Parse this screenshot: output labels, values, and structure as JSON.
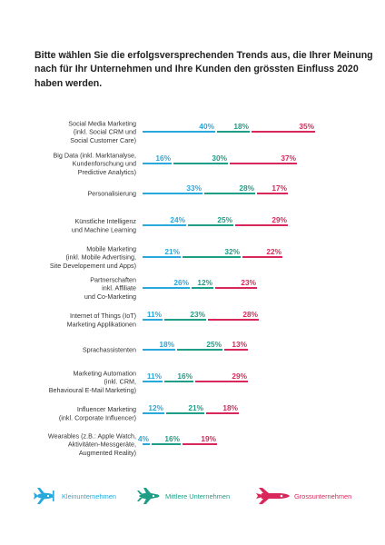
{
  "title": {
    "lines": [
      "Bitte wählen Sie die erfolgsversprechenden Trends aus, die Ihrer Meinung",
      "nach für Ihr Unternehmen und Ihre Kunden den grössten Einfluss 2020",
      "haben werden."
    ]
  },
  "colors": {
    "kleinunternehmen": "#29a8dc",
    "mittlere_unternehmen": "#1e9e87",
    "grossunternehmen": "#d8285b",
    "label_text": "#333333"
  },
  "legend": [
    {
      "key": "kleinunternehmen",
      "label": "Kleinunternehmen",
      "icon": "propeller-plane-icon"
    },
    {
      "key": "mittlere_unternehmen",
      "label": "Mittlere Unternehmen",
      "icon": "jet-plane-icon"
    },
    {
      "key": "grossunternehmen",
      "label": "Grossunternehmen",
      "icon": "rocket-icon"
    }
  ],
  "chart_data": {
    "type": "bar",
    "stacked": true,
    "orientation": "horizontal",
    "value_unit": "%",
    "legend_position": "bottom",
    "grid": false,
    "series": [
      {
        "name": "Kleinunternehmen",
        "values": [
          40,
          16,
          33,
          24,
          21,
          26,
          11,
          18,
          11,
          12,
          4
        ]
      },
      {
        "name": "Mittlere Unternehmen",
        "values": [
          18,
          30,
          28,
          25,
          32,
          12,
          23,
          25,
          16,
          21,
          16
        ]
      },
      {
        "name": "Grossunternehmen",
        "values": [
          35,
          37,
          17,
          29,
          22,
          23,
          28,
          13,
          29,
          18,
          19
        ]
      }
    ],
    "categories": [
      {
        "lines": [
          "Social Media Marketing",
          "(inkl. Social CRM und",
          "Social Customer Care)"
        ]
      },
      {
        "lines": [
          "Big Data (inkl. Marktanalyse,",
          "Kundenforschung und",
          "Predictive Analytics)"
        ]
      },
      {
        "lines": [
          "Personalisierung"
        ]
      },
      {
        "lines": [
          "Künstliche Intelligenz",
          "und Machine Learning"
        ]
      },
      {
        "lines": [
          "Mobile Marketing",
          "(inkl. Mobile Advertising,",
          "Site Developement und Apps)"
        ]
      },
      {
        "lines": [
          "Partnerschaften",
          "inkl. Affiliate",
          "und Co-Marketing"
        ]
      },
      {
        "lines": [
          "Internet of Things (IoT)",
          "Marketing Applikationen"
        ]
      },
      {
        "lines": [
          "Sprachassistenten"
        ]
      },
      {
        "lines": [
          "Marketing Automation",
          "(inkl. CRM,",
          "Behavioural E-Mail Marketing)"
        ]
      },
      {
        "lines": [
          "Influencer Marketing",
          "(inkl. Corporate Influencer)"
        ]
      },
      {
        "lines": [
          "Wearables (z.B.: Apple Watch,",
          "Aktivitäten-Messgeräte,",
          "Augmented Reality)"
        ]
      }
    ]
  }
}
